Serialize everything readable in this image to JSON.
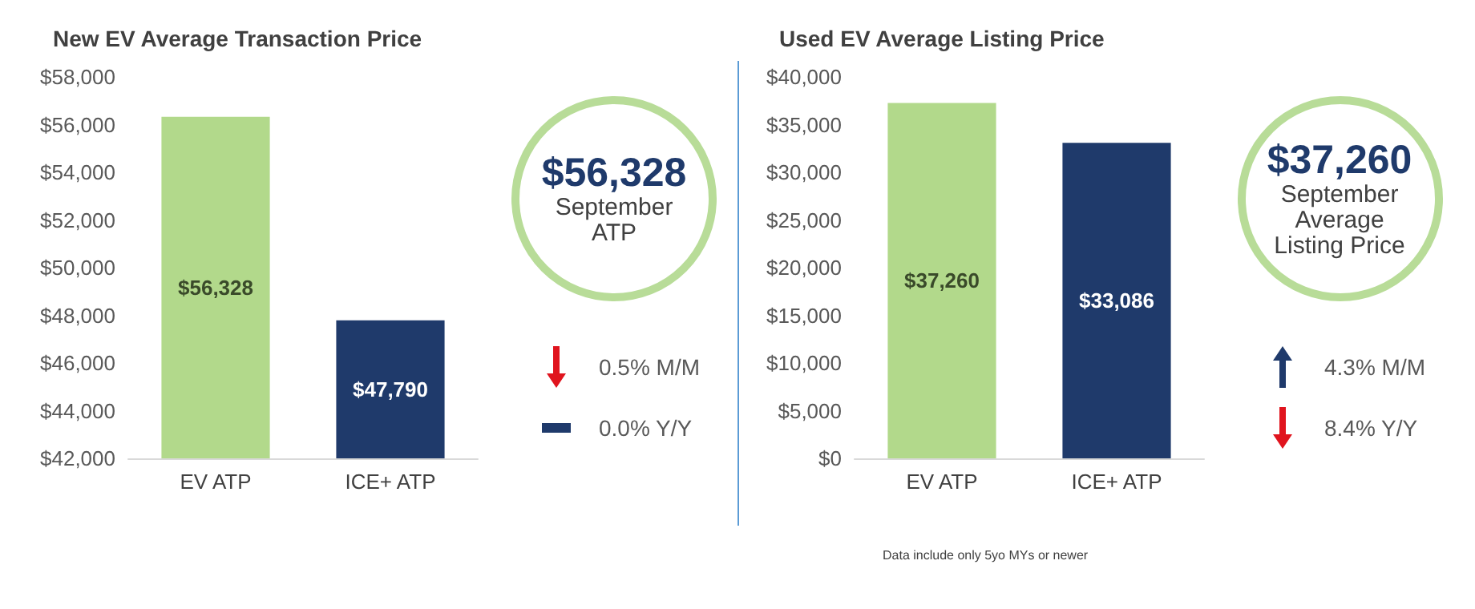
{
  "chart_data": [
    {
      "type": "bar",
      "title": "New EV Average Transaction Price",
      "categories": [
        "EV ATP",
        "ICE+ ATP"
      ],
      "values": [
        56328,
        47790
      ],
      "colors": [
        "#b2d98b",
        "#1f3a6b"
      ],
      "value_labels": [
        "$56,328",
        "$47,790"
      ],
      "ylim": [
        42000,
        58000
      ],
      "yticks": [
        {
          "value": 42000,
          "label": "$42,000"
        },
        {
          "value": 44000,
          "label": "$44,000"
        },
        {
          "value": 46000,
          "label": "$46,000"
        },
        {
          "value": 48000,
          "label": "$48,000"
        },
        {
          "value": 50000,
          "label": "$50,000"
        },
        {
          "value": 52000,
          "label": "$52,000"
        },
        {
          "value": 54000,
          "label": "$54,000"
        },
        {
          "value": 56000,
          "label": "$56,000"
        },
        {
          "value": 58000,
          "label": "$58,000"
        }
      ],
      "grid": false,
      "annotations": [
        "$56,328",
        "September ATP",
        "0.5% M/M",
        "0.0% Y/Y"
      ]
    },
    {
      "type": "bar",
      "title": "Used EV Average Listing Price",
      "categories": [
        "EV ATP",
        "ICE+ ATP"
      ],
      "values": [
        37260,
        33086
      ],
      "colors": [
        "#b2d98b",
        "#1f3a6b"
      ],
      "value_labels": [
        "$37,260",
        "$33,086"
      ],
      "ylim": [
        0,
        40000
      ],
      "yticks": [
        {
          "value": 0,
          "label": "$0"
        },
        {
          "value": 5000,
          "label": "$5,000"
        },
        {
          "value": 10000,
          "label": "$10,000"
        },
        {
          "value": 15000,
          "label": "$15,000"
        },
        {
          "value": 20000,
          "label": "$20,000"
        },
        {
          "value": 25000,
          "label": "$25,000"
        },
        {
          "value": 30000,
          "label": "$30,000"
        },
        {
          "value": 35000,
          "label": "$35,000"
        },
        {
          "value": 40000,
          "label": "$40,000"
        }
      ],
      "grid": false,
      "annotations": [
        "$37,260",
        "September Average Listing Price",
        "4.3% M/M",
        "8.4% Y/Y",
        "Data include only 5yo MYs or newer"
      ]
    }
  ]
}
